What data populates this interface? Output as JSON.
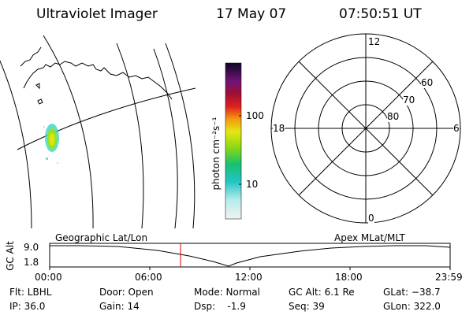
{
  "header": {
    "instrument": "Ultraviolet Imager",
    "date": "17 May 07",
    "time": "07:50:51 UT"
  },
  "colorbar": {
    "label": "photon cm⁻²s⁻¹",
    "ticks": [
      "100",
      "10"
    ]
  },
  "polar_plot": {
    "mlt_labels": {
      "top": "12",
      "left": "18",
      "right": "6",
      "bottom": "0"
    },
    "lat_labels": [
      "60",
      "70",
      "80"
    ]
  },
  "altitude_plot": {
    "ylabel": "GC Alt",
    "yticks": [
      "9.0",
      "1.8"
    ],
    "left_caption": "Geographic Lat/Lon",
    "right_caption": "Apex MLat/MLT",
    "xticks": [
      "00:00",
      "06:00",
      "12:00",
      "18:00",
      "23:59"
    ]
  },
  "info": {
    "filter": "Flt: LBHL",
    "ip": "IP: 36.0",
    "door": "Door: Open",
    "gain": "Gain: 14",
    "mode": "Mode: Normal",
    "dsp": "Dsp:    -1.9",
    "gc_alt": "GC Alt: 6.1 Re",
    "seq": "Seq: 39",
    "glat": "GLat: −38.7",
    "glon": "GLon: 322.0"
  }
}
